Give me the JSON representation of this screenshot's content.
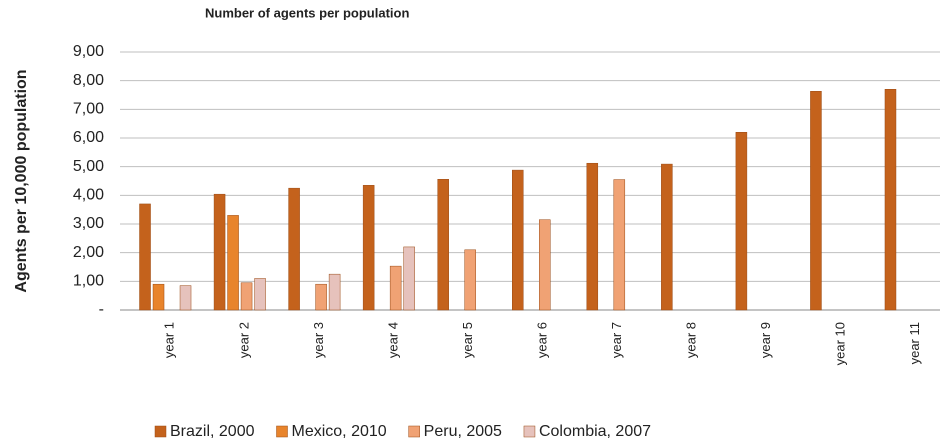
{
  "chart_data": {
    "type": "bar",
    "title": "Number of agents per population",
    "y_label": "Agents per 10,000 population",
    "categories": [
      "year 1",
      "year 2",
      "year 3",
      "year 4",
      "year 5",
      "year 6",
      "year 7",
      "year 8",
      "year 9",
      "year 10",
      "year 11"
    ],
    "series": [
      {
        "name": "Brazil, 2000",
        "color": "#c4621c",
        "values": [
          3.7,
          4.04,
          4.25,
          4.35,
          4.56,
          4.88,
          5.12,
          5.09,
          6.2,
          7.63,
          7.7
        ]
      },
      {
        "name": "Mexico, 2010",
        "color": "#e8842c",
        "values": [
          0.9,
          3.3,
          null,
          null,
          null,
          null,
          null,
          null,
          null,
          null,
          null
        ]
      },
      {
        "name": "Peru, 2005",
        "color": "#f0a274",
        "values": [
          null,
          0.95,
          0.9,
          1.53,
          2.1,
          3.15,
          4.55,
          null,
          null,
          null,
          null
        ]
      },
      {
        "name": "Colombia, 2007",
        "color": "#e6c2bc",
        "values": [
          0.85,
          1.1,
          1.25,
          2.2,
          null,
          null,
          null,
          null,
          null,
          null,
          null
        ]
      }
    ],
    "ylim": [
      0,
      9
    ],
    "yticks": [
      {
        "value": 0,
        "label": "-"
      },
      {
        "value": 1,
        "label": "1,00"
      },
      {
        "value": 2,
        "label": "2,00"
      },
      {
        "value": 3,
        "label": "3,00"
      },
      {
        "value": 4,
        "label": "4,00"
      },
      {
        "value": 5,
        "label": "5,00"
      },
      {
        "value": 6,
        "label": "6,00"
      },
      {
        "value": 7,
        "label": "7,00"
      },
      {
        "value": 8,
        "label": "8,00"
      },
      {
        "value": 9,
        "label": "9,00"
      }
    ],
    "grid": true,
    "legend": "bottom"
  }
}
